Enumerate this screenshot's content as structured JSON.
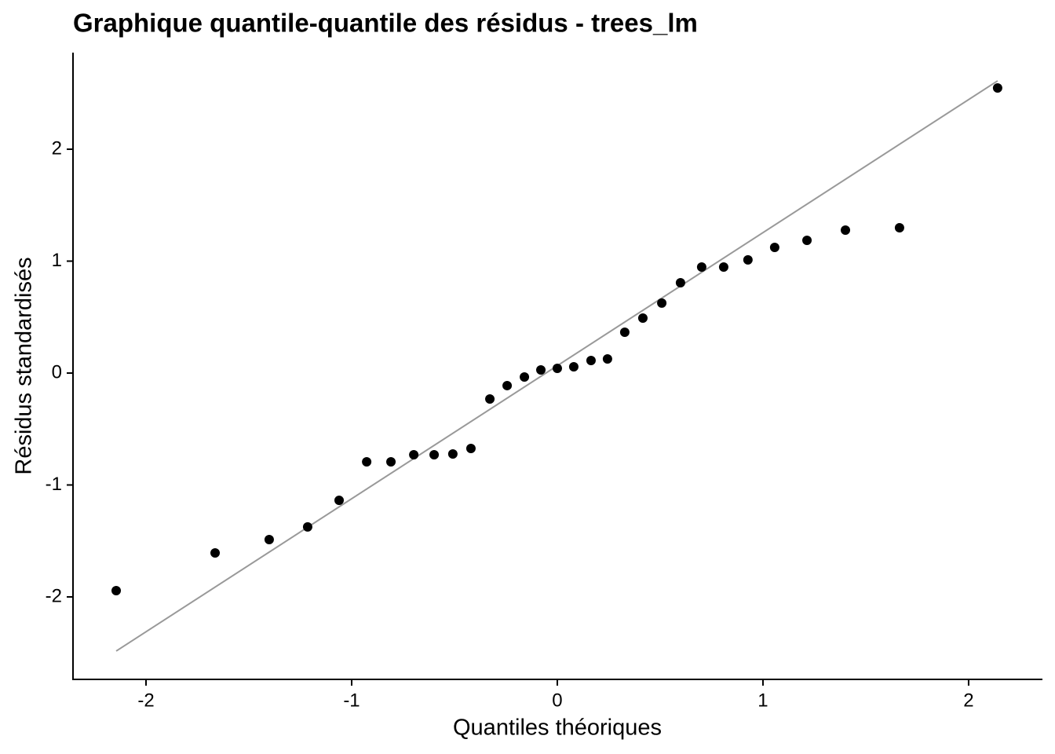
{
  "chart_data": {
    "type": "scatter",
    "title": "Graphique quantile-quantile des résidus - trees_lm",
    "x_label": "Quantiles théoriques",
    "y_label": "Résidus standardisés",
    "x": [
      -2.145,
      -1.664,
      -1.401,
      -1.214,
      -1.061,
      -0.927,
      -0.809,
      -0.698,
      -0.599,
      -0.508,
      -0.42,
      -0.328,
      -0.244,
      -0.16,
      -0.08,
      0,
      0.08,
      0.164,
      0.244,
      0.328,
      0.416,
      0.508,
      0.599,
      0.702,
      0.809,
      0.927,
      1.057,
      1.214,
      1.401,
      1.664,
      2.141
    ],
    "values": [
      -1.944,
      -1.607,
      -1.488,
      -1.375,
      -1.137,
      -0.793,
      -0.793,
      -0.73,
      -0.73,
      -0.723,
      -0.674,
      -0.232,
      -0.112,
      -0.035,
      0.028,
      0.042,
      0.056,
      0.112,
      0.126,
      0.365,
      0.491,
      0.625,
      0.807,
      0.947,
      0.947,
      1.011,
      1.123,
      1.186,
      1.277,
      1.298,
      2.547
    ],
    "color": "#000000",
    "reference_line": {
      "x": [
        -2.145,
        2.141
      ],
      "y": [
        -2.484,
        2.611
      ],
      "color": "#999999"
    },
    "xlim": [
      -2.355,
      2.359
    ],
    "ylim": [
      -2.737,
      2.863
    ],
    "xticks": [
      -2,
      -1,
      0,
      1,
      2
    ],
    "yticks": [
      -2,
      -1,
      0,
      1,
      2
    ]
  }
}
